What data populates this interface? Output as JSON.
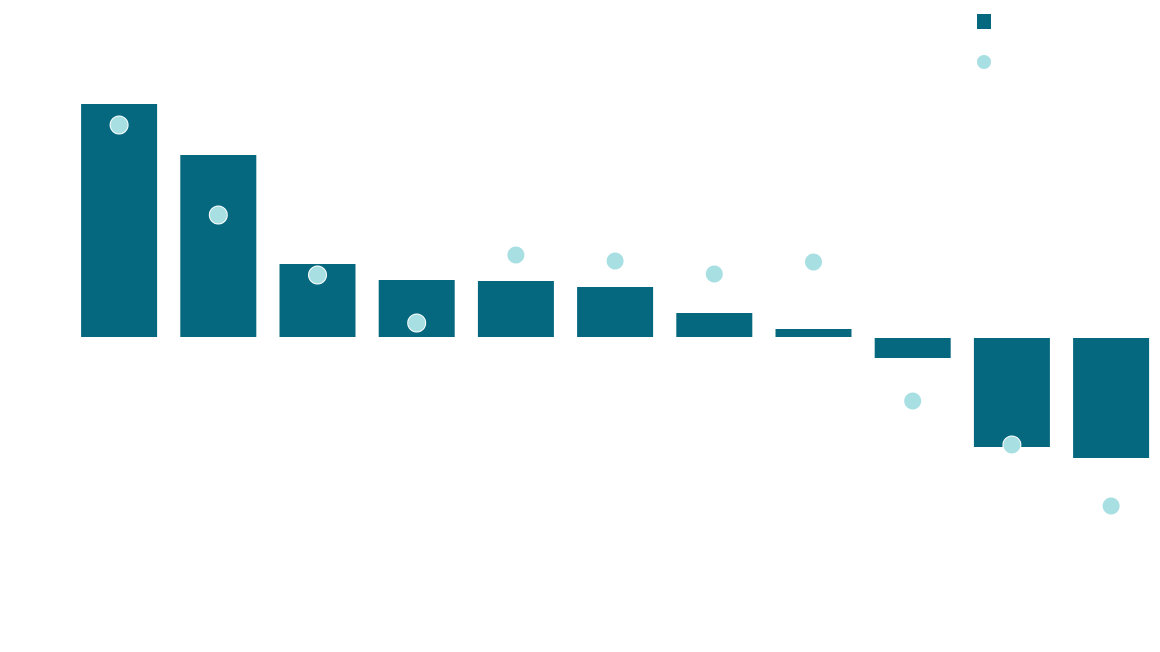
{
  "chart_data": {
    "type": "bar",
    "categories": [
      null,
      null,
      null,
      null,
      null,
      null,
      null,
      null,
      null,
      null,
      null
    ],
    "series": [
      {
        "type": "bar",
        "color": "#05687f",
        "values": [
          23.3,
          18.2,
          7.3,
          5.7,
          5.6,
          5.0,
          2.4,
          0.8,
          -2.0,
          -10.9,
          -12.0
        ]
      },
      {
        "type": "scatter",
        "color": "#a8dfe3",
        "values": [
          21.2,
          12.2,
          6.2,
          1.4,
          8.2,
          7.6,
          6.3,
          7.5,
          -6.4,
          -10.8,
          -16.9
        ]
      }
    ],
    "ylim": [
      -31.5,
      33.7
    ],
    "legend": "upper right"
  }
}
